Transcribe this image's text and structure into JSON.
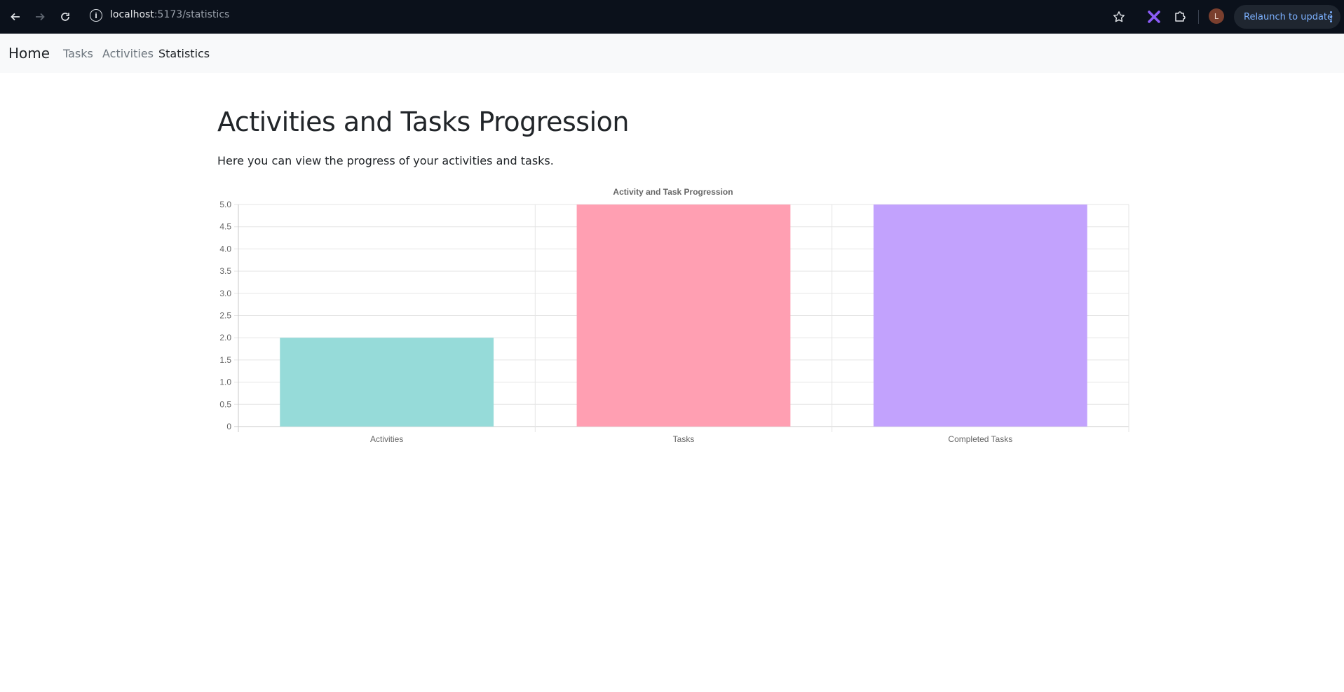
{
  "browser": {
    "url_host": "localhost",
    "url_path": ":5173/statistics",
    "avatar_letter": "L",
    "relaunch_label": "Relaunch to update",
    "icons": [
      "back-arrow-icon",
      "forward-arrow-icon",
      "reload-icon",
      "site-info-icon",
      "bookmark-star-icon",
      "extension-x-icon",
      "extensions-puzzle-icon",
      "menu-dots-icon"
    ]
  },
  "navbar": {
    "brand": "Home",
    "links": [
      {
        "label": "Tasks",
        "active": false
      },
      {
        "label": "Activities",
        "active": false
      },
      {
        "label": "Statistics",
        "active": true
      }
    ]
  },
  "main": {
    "title": "Activities and Tasks Progression",
    "lead": "Here you can view the progress of your activities and tasks."
  },
  "chart_data": {
    "type": "bar",
    "title": "Activity and Task Progression",
    "categories": [
      "Activities",
      "Tasks",
      "Completed Tasks"
    ],
    "values": [
      2,
      5,
      5
    ],
    "colors": [
      "#96dbd9",
      "#ff9fb2",
      "#c2a2fd"
    ],
    "ylim": [
      0,
      5
    ],
    "yticks": [
      "0",
      "0.5",
      "1.0",
      "1.5",
      "2.0",
      "2.5",
      "3.0",
      "3.5",
      "4.0",
      "4.5",
      "5.0"
    ],
    "grid": true,
    "legend": "none"
  }
}
